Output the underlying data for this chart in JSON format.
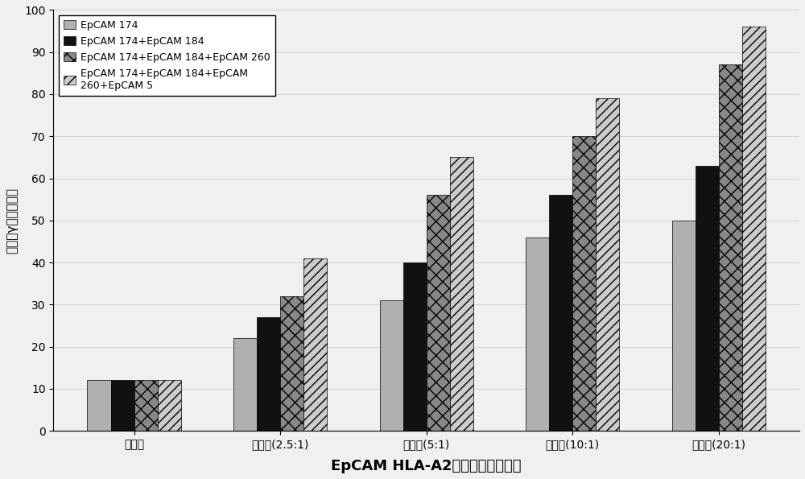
{
  "categories": [
    "对照组",
    "效靶比(2.5:1)",
    "效靶比(5:1)",
    "效靶比(10:1)",
    "效靶比(20:1)"
  ],
  "series": [
    {
      "label": "EpCAM 174",
      "values": [
        12,
        22,
        31,
        46,
        50
      ],
      "color": "#b0b0b0",
      "hatch": ""
    },
    {
      "label": "EpCAM 174+EpCAM 184",
      "values": [
        12,
        27,
        40,
        56,
        63
      ],
      "color": "#111111",
      "hatch": ""
    },
    {
      "label": "EpCAM 174+EpCAM 184+EpCAM 260",
      "values": [
        12,
        32,
        56,
        70,
        87
      ],
      "color": "#888888",
      "hatch": "xx"
    },
    {
      "label": "EpCAM 174+EpCAM 184+EpCAM\n260+EpCAM 5",
      "values": [
        12,
        41,
        65,
        79,
        96
      ],
      "color": "#cccccc",
      "hatch": "xx"
    }
  ],
  "ylabel": "干扰素γ酶联斑点数",
  "xlabel": "EpCAM HLA-A2阳性抗原表位多肽",
  "ylim": [
    0,
    100
  ],
  "yticks": [
    0,
    10,
    20,
    30,
    40,
    50,
    60,
    70,
    80,
    90,
    100
  ],
  "bar_width": 0.16,
  "background_color": "#f0f0f0",
  "figure_size": [
    10.0,
    5.95
  ],
  "dpi": 100
}
